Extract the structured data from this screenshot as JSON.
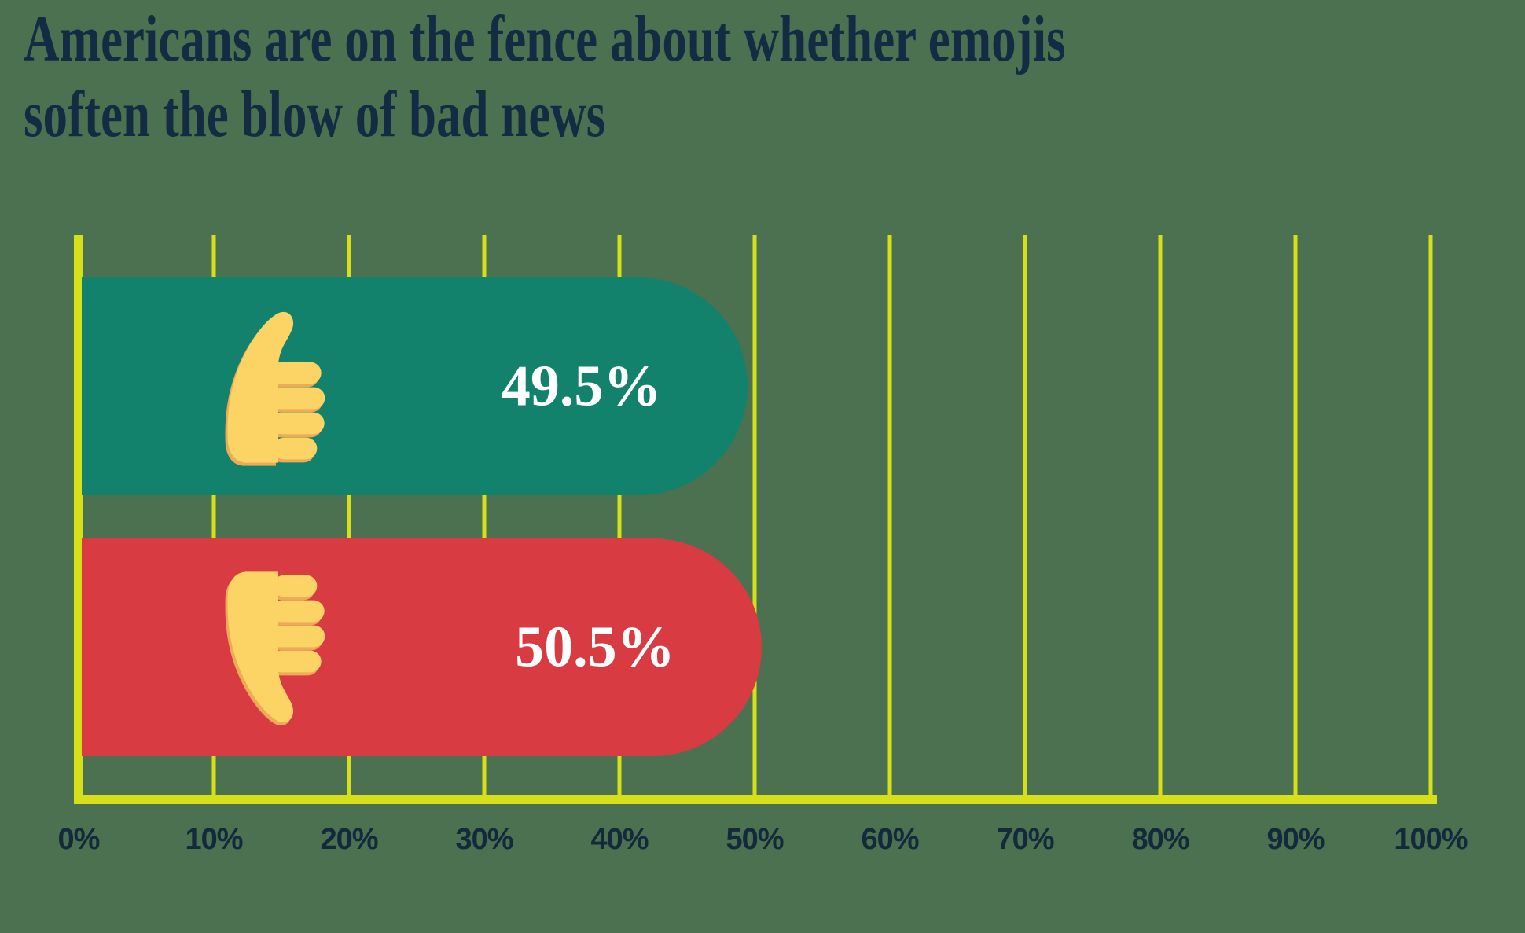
{
  "title": {
    "text": "Americans are on the fence about whether emojis soften the blow of bad news",
    "lines": [
      "Americans are on the fence about whether emojis",
      "soften the blow of bad news"
    ]
  },
  "chart_data": {
    "type": "bar",
    "orientation": "horizontal",
    "title": "Americans are on the fence about whether emojis soften the blow of bad news",
    "categories": [
      "thumbs-up",
      "thumbs-down"
    ],
    "values": [
      49.5,
      50.5
    ],
    "value_labels": [
      "49.5%",
      "50.5%"
    ],
    "xlabel": "",
    "ylabel": "",
    "xlim": [
      0,
      100
    ],
    "x_ticks": [
      "0%",
      "10%",
      "20%",
      "30%",
      "40%",
      "50%",
      "60%",
      "70%",
      "80%",
      "90%",
      "100%"
    ],
    "grid": "vertical",
    "legend": false
  },
  "bars": [
    {
      "icon": "thumbs-up-icon",
      "label": "49.5%",
      "value": 49.5,
      "color": "#12826C"
    },
    {
      "icon": "thumbs-down-icon",
      "label": "50.5%",
      "value": 50.5,
      "color": "#D83C42"
    }
  ],
  "colors": {
    "background": "#4B7150",
    "grid_yellow": "#D6DF19",
    "bar_positive": "#12826C",
    "bar_negative": "#D83C42",
    "text_navy": "#14293C",
    "title_navy": "#132C44",
    "value_text": "#FFFFFF",
    "emoji_skin": "#FCD466",
    "emoji_shadow": "#EDAA57"
  }
}
